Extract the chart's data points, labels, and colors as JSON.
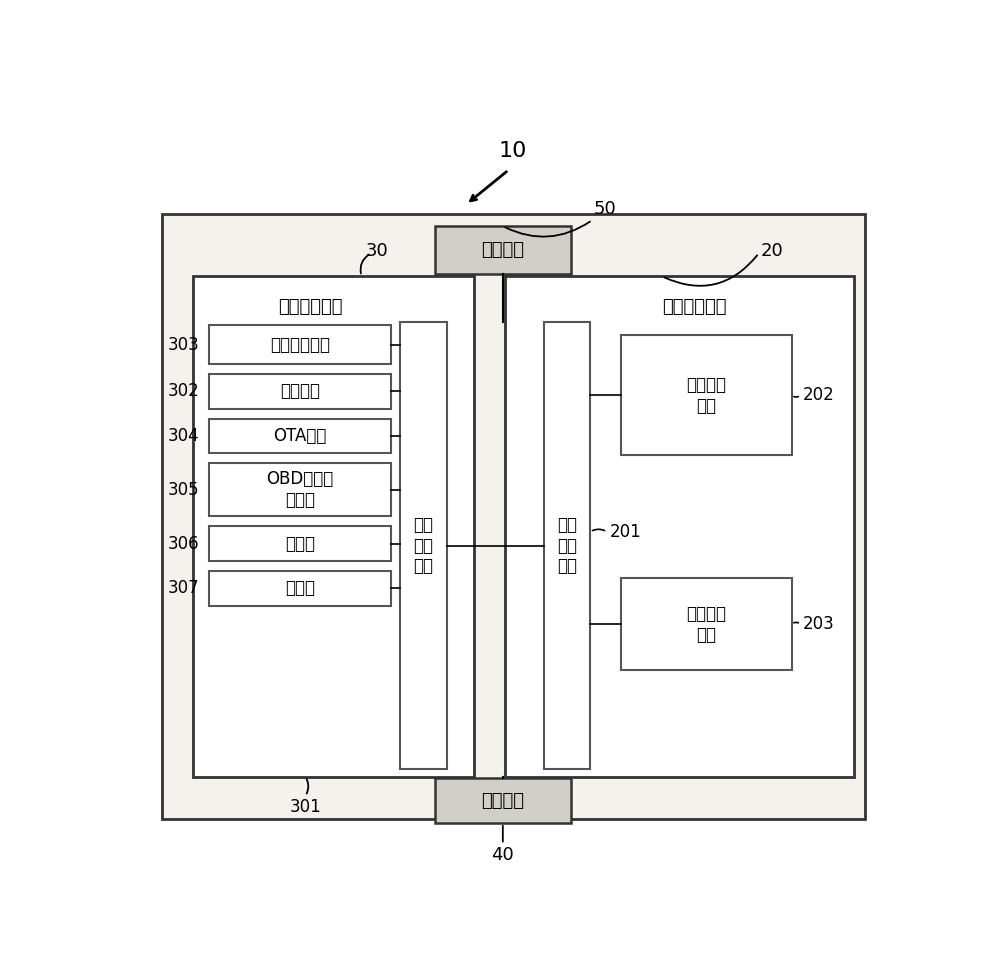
{
  "fig_w": 10.0,
  "fig_h": 9.67,
  "fig_bg": "#ffffff",
  "main_bg": "#f5f2ee",
  "box_bg": "#ffffff",
  "chip_bg": "#ffffff",
  "power_bg": "#d0cfc8",
  "display_bg": "#d0cfc8",
  "edge_color": "#555555",
  "edge_thick": "#333333",
  "label_10": "10",
  "label_50": "50",
  "label_40": "40",
  "label_30": "30",
  "label_20": "20",
  "label_301": "301",
  "label_201": "201",
  "label_202": "202",
  "label_203": "203",
  "label_303": "303",
  "label_302": "302",
  "label_304": "304",
  "label_305": "305",
  "label_306": "306",
  "label_307": "307",
  "text_power": "电源模块",
  "text_display": "显示单元",
  "text_unit30": "监控定位单元",
  "text_unit20": "整车控制单元",
  "text_chip_left": "监控\n定位\n芯片",
  "text_chip_right": "整车\n控制\n芯片",
  "text_mod0": "无线通讯模块",
  "text_mod1": "定位模块",
  "text_mod2": "OTA模块",
  "text_mod3": "OBD车载诊\n断模块",
  "text_mod4": "陀螺仪",
  "text_mod5": "存储器",
  "text_sig": "信号采集\n单元",
  "text_bat": "电池管理\n单元"
}
